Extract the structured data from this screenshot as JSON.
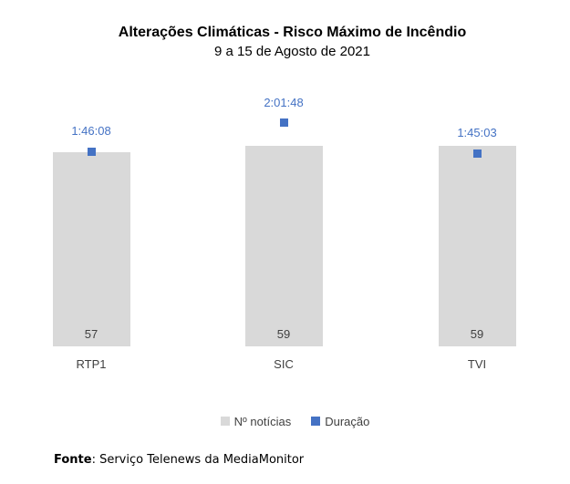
{
  "header": {
    "title": "Alterações Climáticas - Risco Máximo de Incêndio",
    "subtitle": "9 a 15 de Agosto de 2021"
  },
  "chart_data": {
    "type": "bar",
    "subtype": "combo-bar-with-point-markers",
    "categories": [
      "RTP1",
      "SIC",
      "TVI"
    ],
    "series": [
      {
        "name": "Nº notícias",
        "type": "bar",
        "axis": "primary",
        "color": "#d9d9d9",
        "values": [
          57,
          59,
          59
        ]
      },
      {
        "name": "Duração",
        "type": "point",
        "axis": "secondary",
        "color": "#4472c4",
        "values": [
          "1:46:08",
          "2:01:48",
          "1:45:03"
        ]
      }
    ],
    "title": "Alterações Climáticas - Risco Máximo de Incêndio",
    "subtitle": "9 a 15 de Agosto de 2021",
    "xlabel": "",
    "ylabel": "",
    "ylim_primary": [
      0,
      76
    ],
    "ylim_secondary_seconds": [
      0,
      8460
    ],
    "grid": false,
    "axes_visible": false,
    "legend_position": "bottom",
    "value_label_position": "inside-base",
    "text_color": "#404040"
  },
  "legend": {
    "items": [
      {
        "label": "Nº notícias",
        "color": "#d9d9d9"
      },
      {
        "label": "Duração",
        "color": "#4472c4"
      }
    ]
  },
  "footer": {
    "source_label": "Fonte",
    "source_text": ": Serviço Telenews da MediaMonitor"
  }
}
